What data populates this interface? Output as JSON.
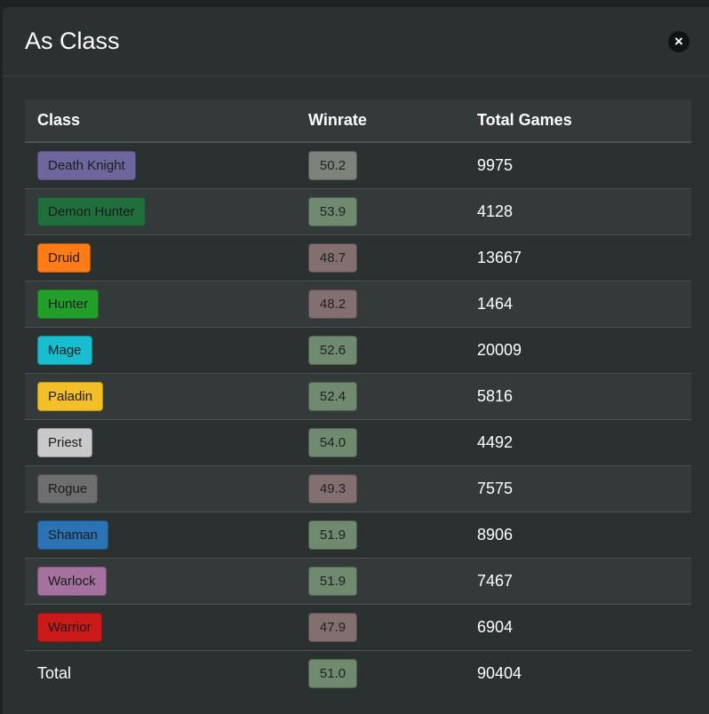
{
  "modal": {
    "title": "As Class",
    "close_glyph": "×",
    "close_icon": "close-icon"
  },
  "table": {
    "headers": {
      "class": "Class",
      "winrate": "Winrate",
      "total_games": "Total Games"
    },
    "rows": [
      {
        "class": "Death Knight",
        "color": "#6d669d",
        "winrate": "50.2",
        "games": "9975"
      },
      {
        "class": "Demon Hunter",
        "color": "#1f6e3c",
        "winrate": "53.9",
        "games": "4128"
      },
      {
        "class": "Druid",
        "color": "#ff7b16",
        "winrate": "48.7",
        "games": "13667"
      },
      {
        "class": "Hunter",
        "color": "#229f2a",
        "winrate": "48.2",
        "games": "1464"
      },
      {
        "class": "Mage",
        "color": "#18bdd0",
        "winrate": "52.6",
        "games": "20009"
      },
      {
        "class": "Paladin",
        "color": "#f3bf26",
        "winrate": "52.4",
        "games": "5816"
      },
      {
        "class": "Priest",
        "color": "#c9c9c9",
        "winrate": "54.0",
        "games": "4492"
      },
      {
        "class": "Rogue",
        "color": "#6e6e6e",
        "winrate": "49.3",
        "games": "7575"
      },
      {
        "class": "Shaman",
        "color": "#2b73b4",
        "winrate": "51.9",
        "games": "8906"
      },
      {
        "class": "Warlock",
        "color": "#a5729f",
        "winrate": "51.9",
        "games": "7467"
      },
      {
        "class": "Warrior",
        "color": "#cc1919",
        "winrate": "47.9",
        "games": "6904"
      }
    ],
    "total": {
      "label": "Total",
      "winrate": "51.0",
      "games": "90404"
    }
  }
}
